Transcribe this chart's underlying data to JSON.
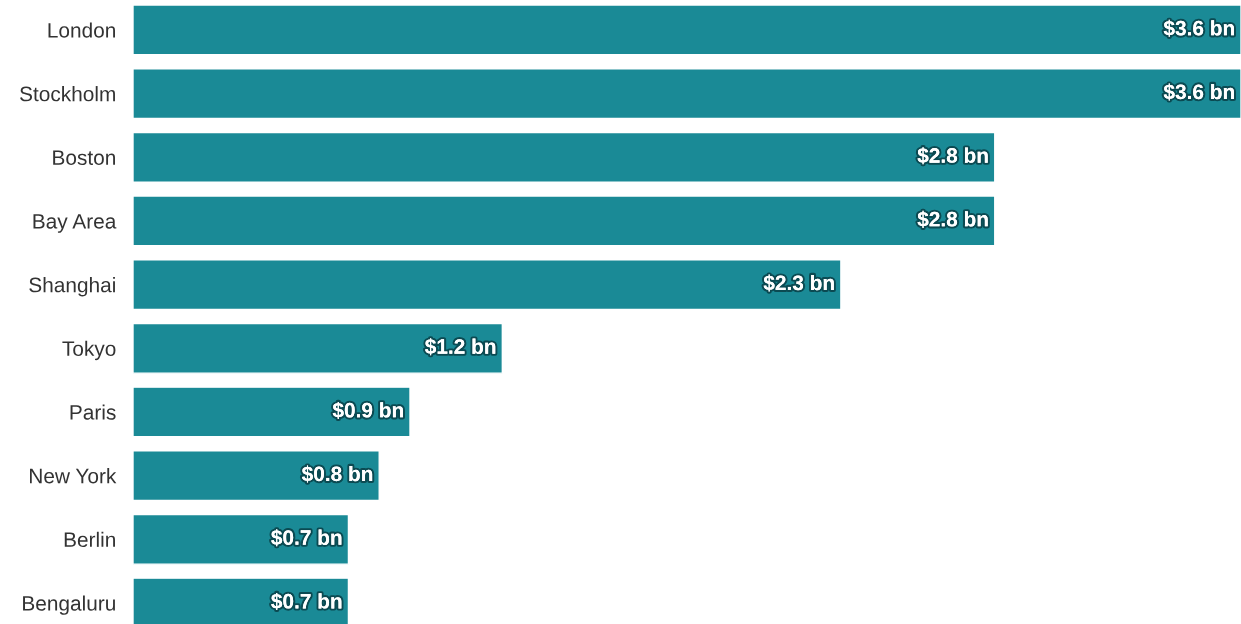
{
  "chart_data": {
    "type": "bar",
    "orientation": "horizontal",
    "categories": [
      "London",
      "Stockholm",
      "Boston",
      "Bay Area",
      "Shanghai",
      "Tokyo",
      "Paris",
      "New York",
      "Berlin",
      "Bengaluru"
    ],
    "values": [
      3.6,
      3.6,
      2.8,
      2.8,
      2.3,
      1.2,
      0.9,
      0.8,
      0.7,
      0.7
    ],
    "value_labels": [
      "$3.6 bn",
      "$3.6 bn",
      "$2.8 bn",
      "$2.8 bn",
      "$2.3 bn",
      "$1.2 bn",
      "$0.9 bn",
      "$0.8 bn",
      "$0.7 bn",
      "$0.7 bn"
    ],
    "color": "#1a8a96",
    "grid": false,
    "legend": false
  }
}
